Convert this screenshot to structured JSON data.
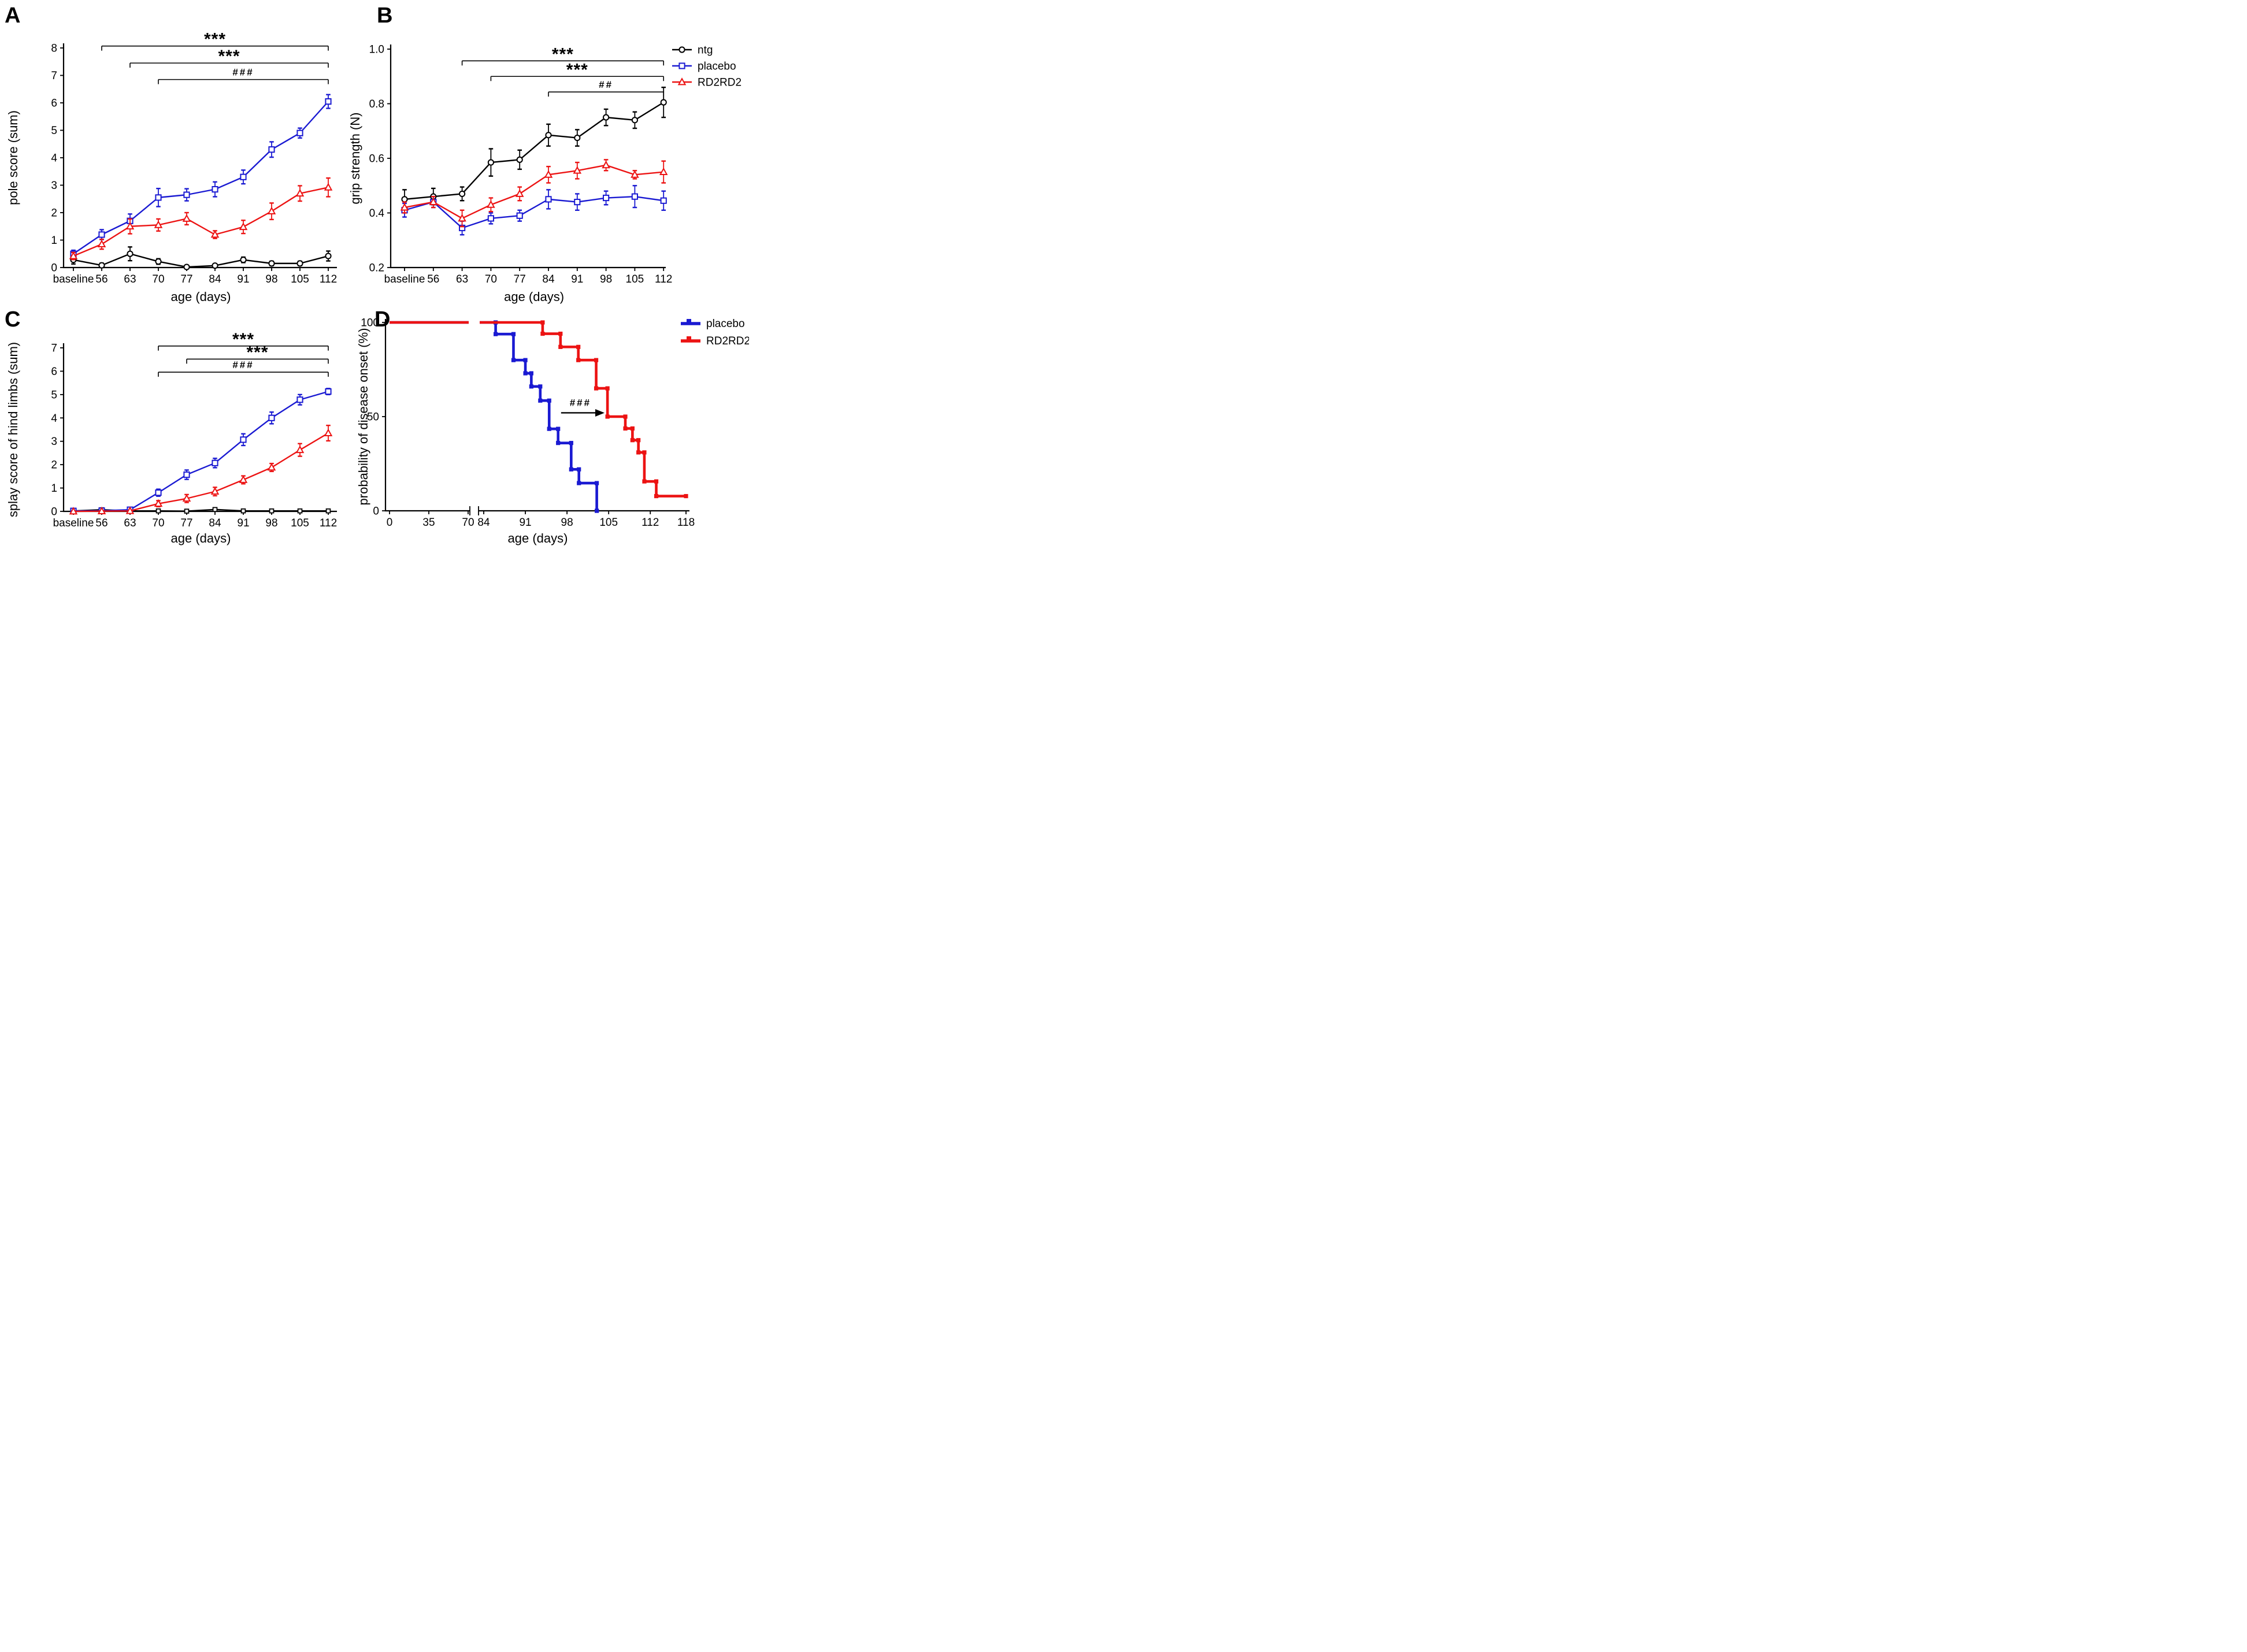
{
  "colors": {
    "black": "#000000",
    "blue": "#1a1ad2",
    "red": "#ec1313",
    "background": "#ffffff"
  },
  "figure": {
    "panels": [
      {
        "letter": "A"
      },
      {
        "letter": "B"
      },
      {
        "letter": "C"
      },
      {
        "letter": "D"
      }
    ]
  },
  "chart_data": [
    {
      "id": "A",
      "type": "line",
      "title": "",
      "ylabel": "pole score (sum)",
      "xlabel": "age (days)",
      "categories": [
        "baseline",
        "56",
        "63",
        "70",
        "77",
        "84",
        "91",
        "98",
        "105",
        "112"
      ],
      "ylim": [
        0,
        8
      ],
      "yticks": [
        "0",
        "1",
        "2",
        "3",
        "4",
        "5",
        "6",
        "7",
        "8"
      ],
      "grid": false,
      "series": [
        {
          "name": "ntg",
          "color": "#000000",
          "marker": "circle",
          "values": [
            0.28,
            0.08,
            0.5,
            0.22,
            0.02,
            0.07,
            0.28,
            0.15,
            0.15,
            0.42
          ],
          "errors": [
            0.15,
            0.08,
            0.25,
            0.1,
            0.03,
            0.05,
            0.1,
            0.08,
            0.08,
            0.18
          ]
        },
        {
          "name": "placebo",
          "color": "#1a1ad2",
          "marker": "square",
          "values": [
            0.5,
            1.2,
            1.7,
            2.55,
            2.65,
            2.85,
            3.3,
            4.3,
            4.9,
            6.05
          ],
          "errors": [
            0.13,
            0.18,
            0.25,
            0.33,
            0.22,
            0.27,
            0.25,
            0.28,
            0.18,
            0.25
          ]
        },
        {
          "name": "RD2RD2",
          "color": "#ec1313",
          "marker": "triangle",
          "values": [
            0.42,
            0.85,
            1.5,
            1.55,
            1.78,
            1.2,
            1.48,
            2.05,
            2.7,
            2.92
          ],
          "errors": [
            0.13,
            0.18,
            0.27,
            0.22,
            0.22,
            0.14,
            0.24,
            0.3,
            0.28,
            0.34
          ]
        }
      ],
      "sig_bars": [
        {
          "label": "***",
          "from": 1,
          "to": 9,
          "y": 8.07
        },
        {
          "label": "***",
          "from": 2,
          "to": 9,
          "y": 7.45
        },
        {
          "label": "###",
          "from": 3,
          "to": 9,
          "y": 6.85
        }
      ]
    },
    {
      "id": "B",
      "type": "line",
      "title": "",
      "ylabel": "grip strength (N)",
      "xlabel": "age (days)",
      "categories": [
        "baseline",
        "56",
        "63",
        "70",
        "77",
        "84",
        "91",
        "98",
        "105",
        "112"
      ],
      "ylim": [
        0.2,
        1.0
      ],
      "yticks": [
        "0.2",
        "0.4",
        "0.6",
        "0.8",
        "1.0"
      ],
      "grid": false,
      "series": [
        {
          "name": "ntg",
          "color": "#000000",
          "marker": "circle",
          "values": [
            0.45,
            0.46,
            0.47,
            0.585,
            0.595,
            0.685,
            0.675,
            0.75,
            0.74,
            0.805
          ],
          "errors": [
            0.035,
            0.03,
            0.025,
            0.05,
            0.035,
            0.04,
            0.03,
            0.03,
            0.03,
            0.055
          ]
        },
        {
          "name": "placebo",
          "color": "#1a1ad2",
          "marker": "square",
          "values": [
            0.41,
            0.44,
            0.345,
            0.38,
            0.39,
            0.45,
            0.44,
            0.455,
            0.46,
            0.445
          ],
          "errors": [
            0.025,
            0.02,
            0.025,
            0.02,
            0.02,
            0.035,
            0.03,
            0.025,
            0.04,
            0.035
          ]
        },
        {
          "name": "RD2RD2",
          "color": "#ec1313",
          "marker": "triangle",
          "values": [
            0.42,
            0.44,
            0.38,
            0.43,
            0.47,
            0.54,
            0.555,
            0.575,
            0.54,
            0.55
          ],
          "errors": [
            0.02,
            0.02,
            0.03,
            0.025,
            0.025,
            0.03,
            0.03,
            0.02,
            0.015,
            0.04
          ]
        }
      ],
      "sig_bars": [
        {
          "label": "***",
          "from": 2,
          "to": 9,
          "y": 0.957
        },
        {
          "label": "***",
          "from": 3,
          "to": 9,
          "y": 0.9
        },
        {
          "label": "##",
          "from": 5,
          "to": 9,
          "y": 0.843
        }
      ],
      "legend": {
        "position": "right",
        "items": [
          {
            "label": "ntg",
            "color": "#000000",
            "marker": "circle"
          },
          {
            "label": "placebo",
            "color": "#1a1ad2",
            "marker": "square"
          },
          {
            "label": "RD2RD2",
            "color": "#ec1313",
            "marker": "triangle"
          }
        ]
      }
    },
    {
      "id": "C",
      "type": "line",
      "title": "",
      "ylabel": "splay score of hind limbs (sum)",
      "xlabel": "age (days)",
      "categories": [
        "baseline",
        "56",
        "63",
        "70",
        "77",
        "84",
        "91",
        "98",
        "105",
        "112"
      ],
      "ylim": [
        0,
        7
      ],
      "yticks": [
        "0",
        "1",
        "2",
        "3",
        "4",
        "5",
        "6",
        "7"
      ],
      "grid": false,
      "series": [
        {
          "name": "ntg",
          "color": "#000000",
          "marker": "square-small",
          "values": [
            0.02,
            0.07,
            0.02,
            0.02,
            0.01,
            0.08,
            0.02,
            0.02,
            0.02,
            0.02
          ],
          "errors": [
            0.02,
            0.05,
            0.02,
            0.02,
            0.01,
            0.05,
            0.02,
            0.02,
            0.02,
            0.02
          ]
        },
        {
          "name": "placebo",
          "color": "#1a1ad2",
          "marker": "square",
          "values": [
            0.02,
            0.03,
            0.07,
            0.8,
            1.57,
            2.07,
            3.07,
            4.0,
            4.78,
            5.13
          ],
          "errors": [
            0.02,
            0.03,
            0.05,
            0.15,
            0.2,
            0.2,
            0.25,
            0.25,
            0.22,
            0.13
          ]
        },
        {
          "name": "RD2RD2",
          "color": "#ec1313",
          "marker": "triangle",
          "values": [
            0.0,
            0.01,
            0.02,
            0.33,
            0.55,
            0.85,
            1.35,
            1.88,
            2.63,
            3.35
          ],
          "errors": [
            0.01,
            0.01,
            0.02,
            0.13,
            0.17,
            0.18,
            0.17,
            0.17,
            0.27,
            0.33
          ]
        }
      ],
      "sig_bars": [
        {
          "label": "***",
          "from": 3,
          "to": 9,
          "y": 7.08
        },
        {
          "label": "***",
          "from": 4,
          "to": 9,
          "y": 6.52
        },
        {
          "label": "###",
          "from": 3,
          "to": 9,
          "y": 5.96
        }
      ]
    },
    {
      "id": "D",
      "type": "km-step",
      "title": "",
      "ylabel": "probability of disease onset (%)",
      "xlabel": "age (days)",
      "ylim": [
        0,
        100
      ],
      "yticks": [
        "0",
        "50",
        "100"
      ],
      "x_axis_break": {
        "between": [
          70,
          84
        ]
      },
      "xticks_left": [
        {
          "label": "0",
          "day": 0
        },
        {
          "label": "35",
          "day": 35
        },
        {
          "label": "70",
          "day": 70
        }
      ],
      "xticks_right": [
        {
          "label": "84",
          "day": 84
        },
        {
          "label": "91",
          "day": 91
        },
        {
          "label": "98",
          "day": 98
        },
        {
          "label": "105",
          "day": 105
        },
        {
          "label": "112",
          "day": 112
        },
        {
          "label": "118",
          "day": 118
        }
      ],
      "series": [
        {
          "name": "placebo",
          "color": "#1a1ad2",
          "steps": [
            [
              0,
              100
            ],
            [
              86,
              100
            ],
            [
              86,
              93.8
            ],
            [
              89,
              93.8
            ],
            [
              89,
              80
            ],
            [
              91,
              80
            ],
            [
              91,
              73
            ],
            [
              92,
              73
            ],
            [
              92,
              66
            ],
            [
              93.5,
              66
            ],
            [
              93.5,
              58.5
            ],
            [
              95,
              58.5
            ],
            [
              95,
              43.5
            ],
            [
              96.5,
              43.5
            ],
            [
              96.5,
              36
            ],
            [
              98.7,
              36
            ],
            [
              98.7,
              22
            ],
            [
              100,
              22
            ],
            [
              100,
              14.7
            ],
            [
              103,
              14.7
            ],
            [
              103,
              0
            ]
          ]
        },
        {
          "name": "RD2RD2",
          "color": "#ec1313",
          "steps": [
            [
              0,
              100
            ],
            [
              93.9,
              100
            ],
            [
              93.9,
              94
            ],
            [
              96.9,
              94
            ],
            [
              96.9,
              87
            ],
            [
              99.9,
              87
            ],
            [
              99.9,
              80
            ],
            [
              102.9,
              80
            ],
            [
              102.9,
              65
            ],
            [
              104.8,
              65
            ],
            [
              104.8,
              50
            ],
            [
              107.8,
              50
            ],
            [
              107.8,
              43.7
            ],
            [
              109,
              43.7
            ],
            [
              109,
              37.5
            ],
            [
              110,
              37.5
            ],
            [
              110,
              31
            ],
            [
              111,
              31
            ],
            [
              111,
              15.6
            ],
            [
              113,
              15.6
            ],
            [
              113,
              7.8
            ],
            [
              118,
              7.8
            ]
          ]
        }
      ],
      "annotation": {
        "label": "###",
        "x_from_day": 97,
        "x_to_day": 104.3,
        "y_pct": 52
      },
      "legend": {
        "position": "top-right",
        "items": [
          {
            "label": "placebo",
            "color": "#1a1ad2"
          },
          {
            "label": "RD2RD2",
            "color": "#ec1313"
          }
        ]
      }
    }
  ]
}
